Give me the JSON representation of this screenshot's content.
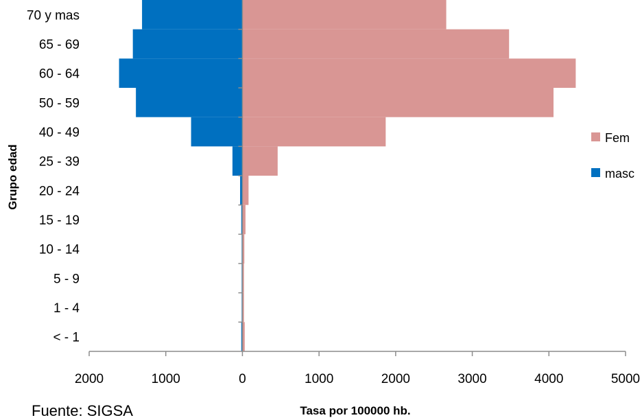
{
  "chart_data": {
    "type": "bar",
    "orientation": "horizontal",
    "subtype": "population-pyramid",
    "categories": [
      "70 y mas",
      "65 - 69",
      "60 - 64",
      "50 - 59",
      "40 - 49",
      "25 - 39",
      "20 - 24",
      "15 - 19",
      "10 - 14",
      "5 - 9",
      "1 - 4",
      "< - 1"
    ],
    "series": [
      {
        "name": "Fem",
        "color": "#d99694",
        "side": "right",
        "values": [
          2660,
          3480,
          4350,
          4060,
          1870,
          460,
          80,
          40,
          25,
          20,
          20,
          30
        ]
      },
      {
        "name": "masc",
        "color": "#0070c0",
        "side": "left",
        "values": [
          1310,
          1430,
          1610,
          1390,
          670,
          130,
          30,
          15,
          10,
          10,
          10,
          15
        ]
      }
    ],
    "x_ticks": [
      "2000",
      "1000",
      "0",
      "1000",
      "2000",
      "3000",
      "4000",
      "5000"
    ],
    "xlim": [
      -2000,
      5000
    ],
    "xlabel": "Tasa por 100000 hb.",
    "ylabel": "Grupo edad",
    "legend_position": "right",
    "grid": false
  },
  "source_text": "Fuente:  SIGSA"
}
